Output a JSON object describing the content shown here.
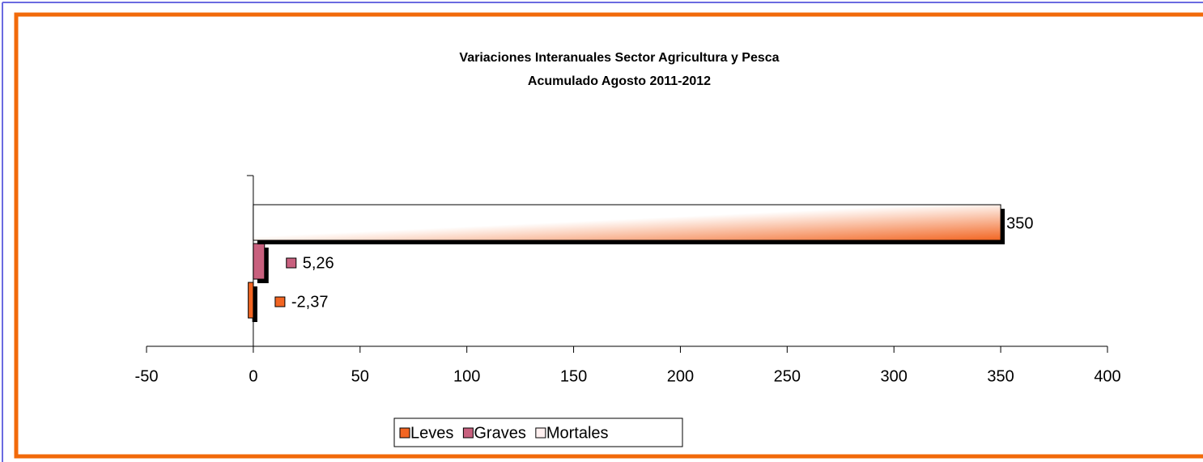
{
  "chart_data": {
    "type": "hbar",
    "title": "Variaciones Interanuales Sector Agricultura y Pesca",
    "subtitle": "Acumulado Agosto 2011-2012",
    "categories": [
      null
    ],
    "series": [
      {
        "name": "Leves",
        "color": "#f26522",
        "values": [
          -2.37
        ],
        "value_labels": [
          "-2,37"
        ]
      },
      {
        "name": "Graves",
        "color": "#c8607e",
        "values": [
          5.26
        ],
        "value_labels": [
          "5,26"
        ]
      },
      {
        "name": "Mortales",
        "color": "#fff0f0",
        "values": [
          350
        ],
        "value_labels": [
          "350"
        ]
      }
    ],
    "xlim": [
      -50,
      400
    ],
    "xticks": [
      -50,
      0,
      50,
      100,
      150,
      200,
      250,
      300,
      350,
      400
    ],
    "legend": "bottom"
  }
}
